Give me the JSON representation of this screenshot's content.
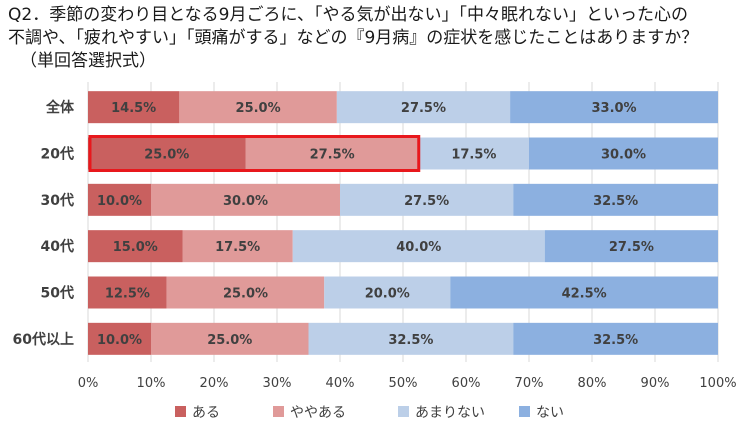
{
  "title": {
    "line1": "Q2．季節の変わり目となる9月ごろに、「やる気が出ない」「中々眠れない」といった心の",
    "line2": "不調や、「疲れやすい」「頭痛がする」などの『9月病』の症状を感じたことはありますか？",
    "line3": "（単回答選択式）"
  },
  "chart_data": {
    "type": "bar",
    "orientation": "horizontal",
    "stacked": true,
    "percent_stacked": true,
    "categories": [
      "全体",
      "20代",
      "30代",
      "40代",
      "50代",
      "60代以上"
    ],
    "series": [
      {
        "name": "ある",
        "color": "#c9605f",
        "values": [
          14.5,
          25.0,
          10.0,
          15.0,
          12.5,
          10.0
        ]
      },
      {
        "name": "ややある",
        "color": "#e09a99",
        "values": [
          25.0,
          27.5,
          30.0,
          17.5,
          25.0,
          25.0
        ]
      },
      {
        "name": "あまりない",
        "color": "#bccfe8",
        "values": [
          27.5,
          17.5,
          27.5,
          40.0,
          20.0,
          32.5
        ]
      },
      {
        "name": "ない",
        "color": "#8cb0e0",
        "values": [
          33.0,
          30.0,
          32.5,
          27.5,
          42.5,
          32.5
        ]
      }
    ],
    "value_labels": [
      [
        "14.5%",
        "25.0%",
        "27.5%",
        "33.0%"
      ],
      [
        "25.0%",
        "27.5%",
        "17.5%",
        "30.0%"
      ],
      [
        "10.0%",
        "30.0%",
        "27.5%",
        "32.5%"
      ],
      [
        "15.0%",
        "17.5%",
        "40.0%",
        "27.5%"
      ],
      [
        "12.5%",
        "25.0%",
        "20.0%",
        "42.5%"
      ],
      [
        "10.0%",
        "25.0%",
        "32.5%",
        "32.5%"
      ]
    ],
    "xlim": [
      0,
      100
    ],
    "x_ticks": [
      "0%",
      "10%",
      "20%",
      "30%",
      "40%",
      "50%",
      "60%",
      "70%",
      "80%",
      "90%",
      "100%"
    ],
    "grid": true,
    "legend_position": "bottom",
    "highlight": {
      "category": "20代",
      "series": [
        "ある",
        "ややある"
      ],
      "color": "#e8181c"
    }
  }
}
